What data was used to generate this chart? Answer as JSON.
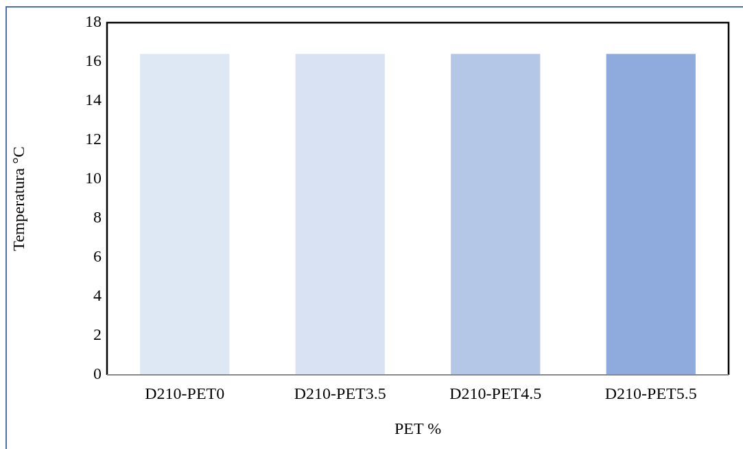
{
  "chart_data": {
    "type": "bar",
    "xlabel": "PET %",
    "ylabel": "Temperatura °C",
    "categories": [
      "D210-PET0",
      "D210-PET3.5",
      "D210-PET4.5",
      "D210-PET5.5"
    ],
    "values": [
      16.4,
      16.4,
      16.4,
      16.4
    ],
    "colors": [
      "#dde8f4",
      "#d9e2f2",
      "#b4c7e7",
      "#8faadc"
    ],
    "ylim": [
      0,
      18
    ],
    "yticks": [
      0,
      2,
      4,
      6,
      8,
      10,
      12,
      14,
      16,
      18
    ],
    "grid": false,
    "legend": false
  }
}
